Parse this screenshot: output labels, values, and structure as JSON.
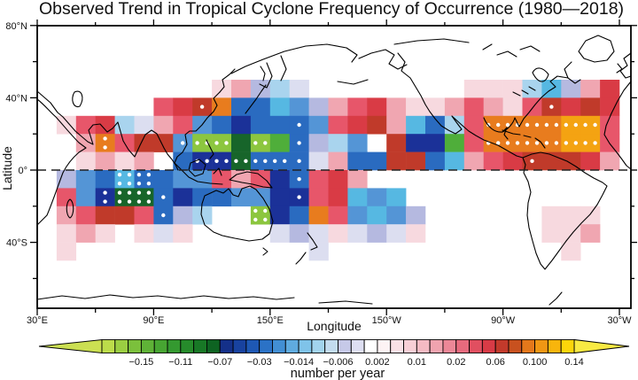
{
  "title": "Observed Trend in Tropical Cyclone Frequency of Occurrence (1980—2018)",
  "axes": {
    "x_label": "Longitude",
    "y_label": "Latitude",
    "x_major_ticks": [
      {
        "label": "30°E",
        "offset_deg": 0
      },
      {
        "label": "90°E",
        "offset_deg": 60
      },
      {
        "label": "150°E",
        "offset_deg": 120
      },
      {
        "label": "150°W",
        "offset_deg": 180
      },
      {
        "label": "90°W",
        "offset_deg": 240
      },
      {
        "label": "30°W",
        "offset_deg": 300
      }
    ],
    "x_minor_offsets_deg": [
      30,
      90,
      150,
      210,
      270
    ],
    "y_major_ticks": [
      {
        "label": "80°N",
        "lat": 80
      },
      {
        "label": "40°N",
        "lat": 40
      },
      {
        "label": "0°",
        "lat": 0
      },
      {
        "label": "40°S",
        "lat": -40
      }
    ],
    "y_minor_lats": [
      60,
      20,
      -20,
      -60
    ]
  },
  "chart_data": {
    "type": "heatmap",
    "title": "Observed Trend in Tropical Cyclone Frequency of Occurrence (1980—2018)",
    "units": "number per year",
    "projection": "equirectangular world map centered on the Pacific, longitudes 30E eastward to 30W",
    "grid_definition": {
      "lon_start_deg_east_of_30E": 0,
      "lon_cell_deg": 10,
      "n_cols": 30,
      "lat_start": 50,
      "lat_cell_deg": -10,
      "n_rows": 10,
      "lat_row_bands": [
        "50N-40N",
        "40N-30N",
        "30N-20N",
        "20N-10N",
        "10N-0",
        "0-10S",
        "10S-20S",
        "20S-30S",
        "30S-40S",
        "40S-50S"
      ]
    },
    "palette": {
      "G": "#8cc63f",
      "g": "#4fae3a",
      "d": "#17652a",
      "N": "#1b3198",
      "B": "#2a6bc0",
      "b": "#5495d6",
      "C": "#56b8e2",
      "c": "#a9d4ee",
      "L": "#b5b9e0",
      "l": "#dcdef0",
      "P": "#f7d9df",
      "p": "#f0a6b1",
      "R": "#e7566a",
      "r": "#d93b45",
      "K": "#c03a2a",
      "O": "#e87c1e",
      "A": "#f4a312",
      "Y": "#fbcb0d"
    },
    "grid_rows": [
      ".........PpLcl........PPPcCLpr",
      "......RrKOBBCbLpRrpPPpRpPRKrKr",
      ".PRrclpRbBNBBBbRrKpCBcROOOOAAR",
      "..pORKKbGGdGgBLcb.KNNgROOOOAAR",
      "..PpPp.BNNdBBBlpBBKKBCpRrKKKrp",
      ".LbBCBBbbRpRNBRrp.............",
      ".RbNddBNBBbbNNRrCbC...........",
      ".pRKKRBLc..GNBORbCbL......PPP.",
      ".PpP.PlP....lLlPlLlP......PPp.",
      ".P............l............P.."
    ],
    "stipple_rows": [
      "..............................",
      "........o.................o...",
      ".............o.........======.",
      "...:...o==.=.o.........======.",
      "........=====o...........o....",
      "....##.......o................",
      "...:##o......o................",
      "......o....#..................",
      "..............................",
      ".............................."
    ],
    "stipple_meaning": "white dots mark grid cells (shown as drawn in the image)",
    "colorbar": {
      "caption": "number per year",
      "tick_labels": [
        "−0.15",
        "−0.11",
        "−0.07",
        "−0.03",
        "−0.014",
        "−0.006",
        "0.002",
        "0.01",
        "0.02",
        "0.06",
        "0.100",
        "0.14"
      ],
      "segment_colors": [
        "#bcdc4a",
        "#9bce42",
        "#7bc03c",
        "#5fb237",
        "#47a532",
        "#349930",
        "#268b2b",
        "#187826",
        "#0e6322",
        "#143089",
        "#18429f",
        "#1e58b4",
        "#2b72c6",
        "#428fd4",
        "#5fabdf",
        "#7fc3e9",
        "#a2d4ee",
        "#c3dcef",
        "#c6c9e8",
        "#dedff2",
        "#ffffff",
        "#fdf3f4",
        "#fae1e6",
        "#f7cfd6",
        "#f4bac3",
        "#f0a3af",
        "#ec8797",
        "#e76a7d",
        "#e14f60",
        "#d83b46",
        "#c23a2b",
        "#c8511f",
        "#e4781b",
        "#f09714",
        "#f8b50c",
        "#fcd50a"
      ],
      "left_arrow_color": "#cbdf52",
      "right_arrow_color": "#f8ea43"
    }
  }
}
